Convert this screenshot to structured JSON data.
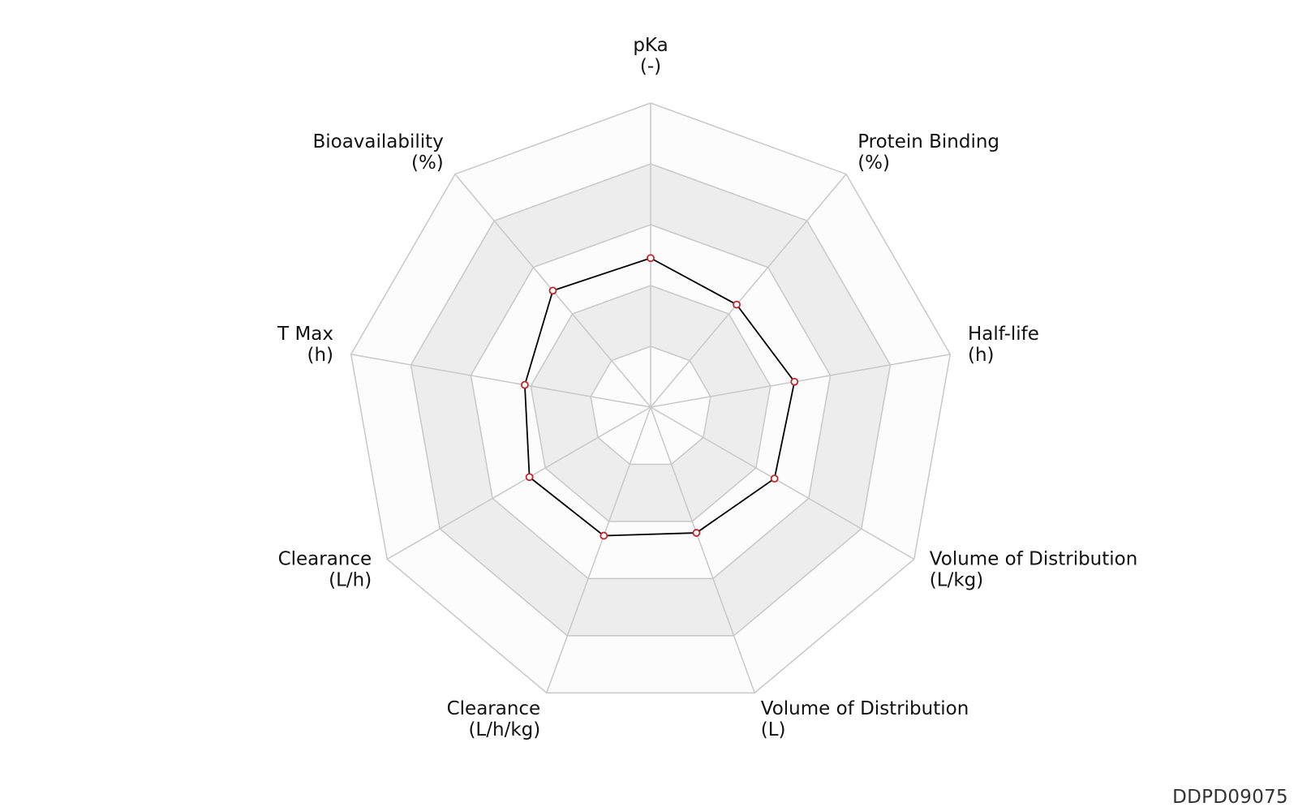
{
  "chart_data": {
    "type": "radar",
    "axes": [
      {
        "name": "pKa",
        "unit": "(-)"
      },
      {
        "name": "Protein Binding",
        "unit": "(%)"
      },
      {
        "name": "Half-life",
        "unit": "(h)"
      },
      {
        "name": "Volume of Distribution",
        "unit": "(L/kg)"
      },
      {
        "name": "Volume of Distribution",
        "unit": "(L)"
      },
      {
        "name": "Clearance",
        "unit": "(L/h/kg)"
      },
      {
        "name": "Clearance",
        "unit": "(L/h)"
      },
      {
        "name": "T Max",
        "unit": "(h)"
      },
      {
        "name": "Bioavailability",
        "unit": "(%)"
      }
    ],
    "rlim": [
      0,
      1
    ],
    "rings": 5,
    "series": [
      {
        "values": [
          0.49,
          0.44,
          0.48,
          0.47,
          0.44,
          0.45,
          0.46,
          0.42,
          0.5
        ]
      }
    ],
    "colors": {
      "line": "#000000",
      "marker_edge": "#c0272d",
      "marker_fill": "#ffffff",
      "grid": "#c8c8c8",
      "band_shaded": "#ededed",
      "band_light": "#fcfcfc"
    }
  },
  "footer": {
    "id": "DDPD09075"
  }
}
